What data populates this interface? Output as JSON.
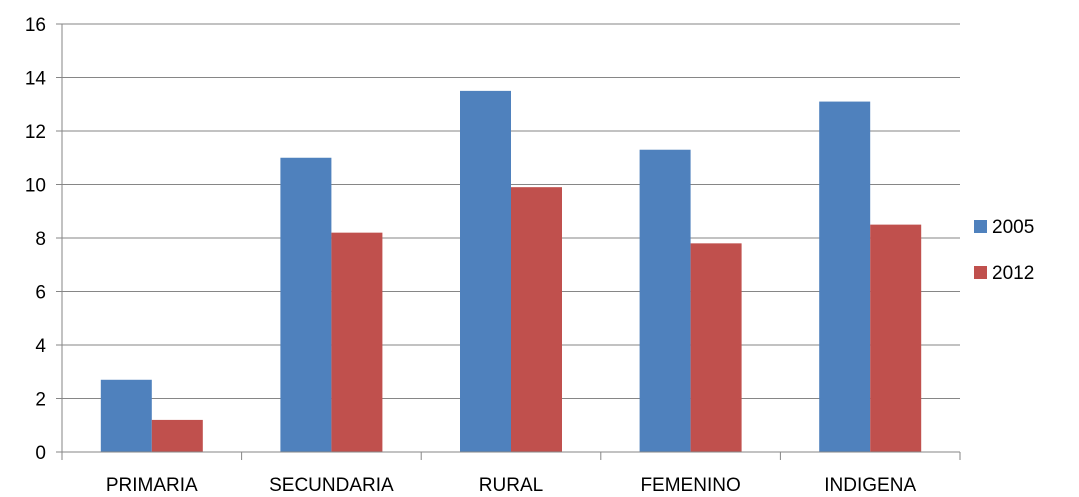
{
  "chart_data": {
    "type": "bar",
    "title": "",
    "xlabel": "",
    "ylabel": "",
    "categories": [
      "PRIMARIA",
      "SECUNDARIA",
      "RURAL",
      "FEMENINO",
      "INDIGENA"
    ],
    "series": [
      {
        "name": "2005",
        "values": [
          2.7,
          11.0,
          13.5,
          11.3,
          13.1
        ],
        "color": "#4F81BD"
      },
      {
        "name": "2012",
        "values": [
          1.2,
          8.2,
          9.9,
          7.8,
          8.5
        ],
        "color": "#C0504D"
      }
    ],
    "ylim": [
      0,
      16
    ],
    "yticks": [
      0,
      2,
      4,
      6,
      8,
      10,
      12,
      14,
      16
    ],
    "grid": true,
    "legend_position": "right"
  }
}
